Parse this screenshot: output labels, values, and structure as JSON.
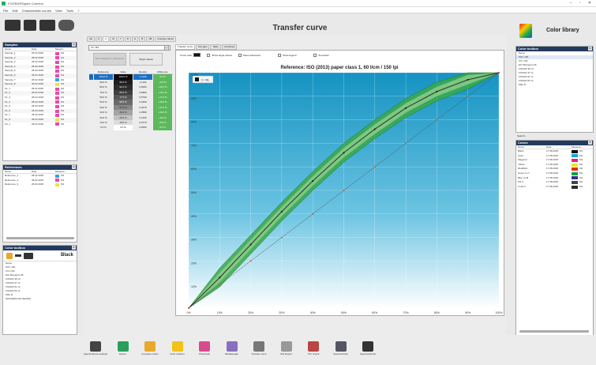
{
  "window": {
    "title": "FOGRA®Squire Connect",
    "minimize": "–",
    "restore": "▫",
    "close": "✕"
  },
  "menu": [
    "File",
    "Edit",
    "Characteristic curves",
    "View",
    "Tools",
    "?"
  ],
  "page_title": "Transfer curve",
  "samples": {
    "title": "Samples",
    "columns": [
      "Name",
      "Date",
      "Measur..."
    ],
    "rows": [
      {
        "name": "Sample_1",
        "date": "28.02.2018",
        "color": "#e94aa7",
        "m": "M1"
      },
      {
        "name": "Sample_2",
        "date": "28.02.2018",
        "color": "#e94aa7",
        "m": "M1"
      },
      {
        "name": "Sample_3",
        "date": "28.02.2018",
        "color": "#e94aa7",
        "m": "M1"
      },
      {
        "name": "Sample_4",
        "date": "28.02.2018",
        "color": "#e94aa7",
        "m": "M1"
      },
      {
        "name": "Sample_5",
        "date": "28.02.2018",
        "color": "#e94aa7",
        "m": "M1"
      },
      {
        "name": "Sample_6",
        "date": "28.02.2018",
        "color": "#e94aa7",
        "m": "M1"
      },
      {
        "name": "Sample_7",
        "date": "28.02.2018",
        "color": "#2ea7e0",
        "m": "M1"
      },
      {
        "name": "Sample_8",
        "date": "28.02.2018",
        "color": "#f2e33a",
        "m": "M1"
      },
      {
        "name": "K1_1",
        "date": "28.02.2018",
        "color": "#e94aa7",
        "m": "M1"
      },
      {
        "name": "K1_2",
        "date": "28.02.2018",
        "color": "#e94aa7",
        "m": "M1"
      },
      {
        "name": "K1_3",
        "date": "28.02.2018",
        "color": "#e94aa7",
        "m": "M1"
      },
      {
        "name": "K1_4",
        "date": "28.02.2018",
        "color": "#e94aa7",
        "m": "M1"
      },
      {
        "name": "K1_5",
        "date": "28.02.2018",
        "color": "#e94aa7",
        "m": "M1"
      },
      {
        "name": "K1_6",
        "date": "28.02.2018",
        "color": "#e94aa7",
        "m": "M1"
      },
      {
        "name": "K1_7",
        "date": "28.02.2018",
        "color": "#e94aa7",
        "m": "M1"
      },
      {
        "name": "K1_8",
        "date": "28.02.2018",
        "color": "#f2e33a",
        "m": "M1"
      },
      {
        "name": "K4_1",
        "date": "28.02.2018",
        "color": "#e94aa7",
        "m": "M1"
      }
    ]
  },
  "references": {
    "title": "References",
    "columns": [
      "Name",
      "Date",
      "Measure..."
    ],
    "rows": [
      {
        "name": "Reference_1",
        "date": "28.02.2018",
        "color": "#2ea7e0",
        "m": "M1"
      },
      {
        "name": "Reference_2",
        "date": "28.02.2018",
        "color": "#e94aa7",
        "m": "M1"
      },
      {
        "name": "Reference_3",
        "date": "28.02.2018",
        "color": "#f2e33a",
        "m": "M1"
      }
    ]
  },
  "color_toolbox_left": {
    "title": "Color toolbox",
    "value": "Black",
    "list": [
      "Name",
      "ISO c (B)",
      "CS 1 (B)",
      "ECI Bezugsm 96",
      "FOGRA 39 v3",
      "FOGRA 47 v1",
      "FOGRA 51 v1",
      "FOGRA 52 v1",
      "MSL B",
      "MASTERS ISO (BASIS)"
    ]
  },
  "status_left": "[Spectro Densi Processes #707024]",
  "top_tabs": [
    "Ink",
    "K",
    "C",
    "M",
    "Y",
    "R",
    "G",
    "B",
    "CB",
    "Average values"
  ],
  "active_top_tab": 2,
  "right_tabs": [
    "Transfer curve",
    "Dot gain",
    "Table",
    "Combined"
  ],
  "selector_value": "C1 / B3",
  "buttons": {
    "copy_reference": "Set to Sample 1 (reference)",
    "target_values": "Target values"
  },
  "checkboxes": {
    "curve_color": "Curve color",
    "show_target": "Show target values",
    "show_tolerances": "Show tolerances",
    "show_legend": "Show legend",
    "smoothen": "Smoothen"
  },
  "table": {
    "columns": [
      "Reference",
      "Value",
      "Density",
      "Difference"
    ],
    "rows": [
      [
        "100,0 %",
        "100,0 %",
        "1,4136",
        "0,0 %"
      ],
      [
        "90,0 %",
        "96,5 %",
        "1,1132",
        "+6,5 %"
      ],
      [
        "80,0 %",
        "92,0 %",
        "0,9000",
        "+12,0 %"
      ],
      [
        "70,0 %",
        "85,5 %",
        "0,6960",
        "+15,5 %"
      ],
      [
        "60,0 %",
        "77,5 %",
        "0,5730",
        "+17,5 %"
      ],
      [
        "50,0 %",
        "68,5 %",
        "0,4460",
        "+18,5 %"
      ],
      [
        "40,0 %",
        "57,5 %",
        "0,3470",
        "+17,5 %"
      ],
      [
        "30,0 %",
        "46,0 %",
        "0,2580",
        "+16,0 %"
      ],
      [
        "20,0 %",
        "29,5 %",
        "0,1460",
        "+9,5 %"
      ],
      [
        "10,0 %",
        "15,5 %",
        "0,0770",
        "+5,5 %"
      ],
      [
        "0,0 %",
        "0,0 %",
        "0,0000",
        "0,0 %"
      ]
    ],
    "value_colors": [
      "#0a0a0a",
      "#1e1e1e",
      "#2c2c2c",
      "#3e3e3e",
      "#555",
      "#6a6a6a",
      "#878787",
      "#a4a4a4",
      "#c2c2c2",
      "#dcdcdc",
      "#fff"
    ],
    "selected_row": 0
  },
  "chart_data": {
    "type": "line",
    "title": "Reference: ISO (2013) paper class 1, 60 l/cm / 150 lpi",
    "legend_label": "C / ML",
    "legend_placement": "top-left",
    "x_ticks": [
      "0%",
      "10%",
      "20%",
      "30%",
      "40%",
      "50%",
      "60%",
      "70%",
      "80%",
      "90%",
      "100%"
    ],
    "y_ticks": [
      "0%",
      "10%",
      "20%",
      "30%",
      "40%",
      "50%",
      "60%",
      "70%",
      "80%",
      "90%",
      "100%"
    ],
    "xlim": [
      0,
      100
    ],
    "ylim": [
      0,
      100
    ],
    "grid": true,
    "series": [
      {
        "name": "Reference",
        "color": "#222222",
        "x": [
          0,
          10,
          20,
          30,
          40,
          50,
          60,
          70,
          80,
          90,
          100
        ],
        "y": [
          0,
          13,
          27,
          41,
          54,
          66,
          76,
          85,
          92,
          97,
          100
        ]
      },
      {
        "name": "Linear",
        "color": "#555555",
        "x": [
          0,
          10,
          20,
          30,
          40,
          50,
          60,
          70,
          80,
          90,
          100
        ],
        "y": [
          0,
          10,
          20,
          30,
          40,
          50,
          60,
          70,
          80,
          90,
          100
        ]
      }
    ],
    "tolerance_band": 4
  },
  "color_library": {
    "title": "Color library",
    "toolbox_title": "Color toolbox",
    "list": [
      "Name",
      "ISO c (B)",
      "CS 1 (B)",
      "ECI Bezugsm 96",
      "FOGRA 39 v3",
      "FOGRA 47 v1",
      "FOGRA 51 v1",
      "FOGRA 52 v1",
      "MSL B"
    ],
    "search_label": "Search...",
    "colors_title": "Colors",
    "columns": [
      "Name",
      "Date",
      "Measure..."
    ],
    "rows": [
      {
        "name": "Black",
        "date": "17.08.2018",
        "color": "#111111",
        "m": "M1"
      },
      {
        "name": "Cyan",
        "date": "17.08.2018",
        "color": "#1aa3e0",
        "m": "M1"
      },
      {
        "name": "Magenta",
        "date": "17.08.2018",
        "color": "#e2237f",
        "m": "M1"
      },
      {
        "name": "Yellow",
        "date": "17.08.2018",
        "color": "#f3e51d",
        "m": "M1"
      },
      {
        "name": "Red/Red",
        "date": "17.08.2018",
        "color": "#e32b24",
        "m": "M1"
      },
      {
        "name": "Green C+Y",
        "date": "17.08.2018",
        "color": "#11a045",
        "m": "M1"
      },
      {
        "name": "Blue C+M",
        "date": "17.08.2018",
        "color": "#2e3590",
        "m": "M1"
      },
      {
        "name": "M1 C",
        "date": "17.08.2018",
        "color": "#444444",
        "m": "M1"
      },
      {
        "name": "C+M+Y",
        "date": "17.08.2018",
        "color": "#2b2b2b",
        "m": "M1"
      }
    ],
    "status": "[FOGRA51 Tonfeld#4.4]"
  },
  "bottom_tools": [
    {
      "label": "Spectro/Densi settings",
      "color": "#444"
    },
    {
      "label": "Export",
      "color": "#2a9e5c"
    },
    {
      "label": "Compare colors",
      "color": "#e8a92b"
    },
    {
      "label": "Color Catcher",
      "color": "#f2c219"
    },
    {
      "label": "Photo/Lab",
      "color": "#d94b8c"
    },
    {
      "label": "Mediawedge",
      "color": "#8a6fbf"
    },
    {
      "label": "Transfer curve",
      "color": "#777"
    },
    {
      "label": "ICE Report",
      "color": "#999"
    },
    {
      "label": "TVI/ Check",
      "color": "#b44"
    },
    {
      "label": "Spectro/Chart",
      "color": "#556"
    },
    {
      "label": "Spectro/Check",
      "color": "#333"
    }
  ]
}
